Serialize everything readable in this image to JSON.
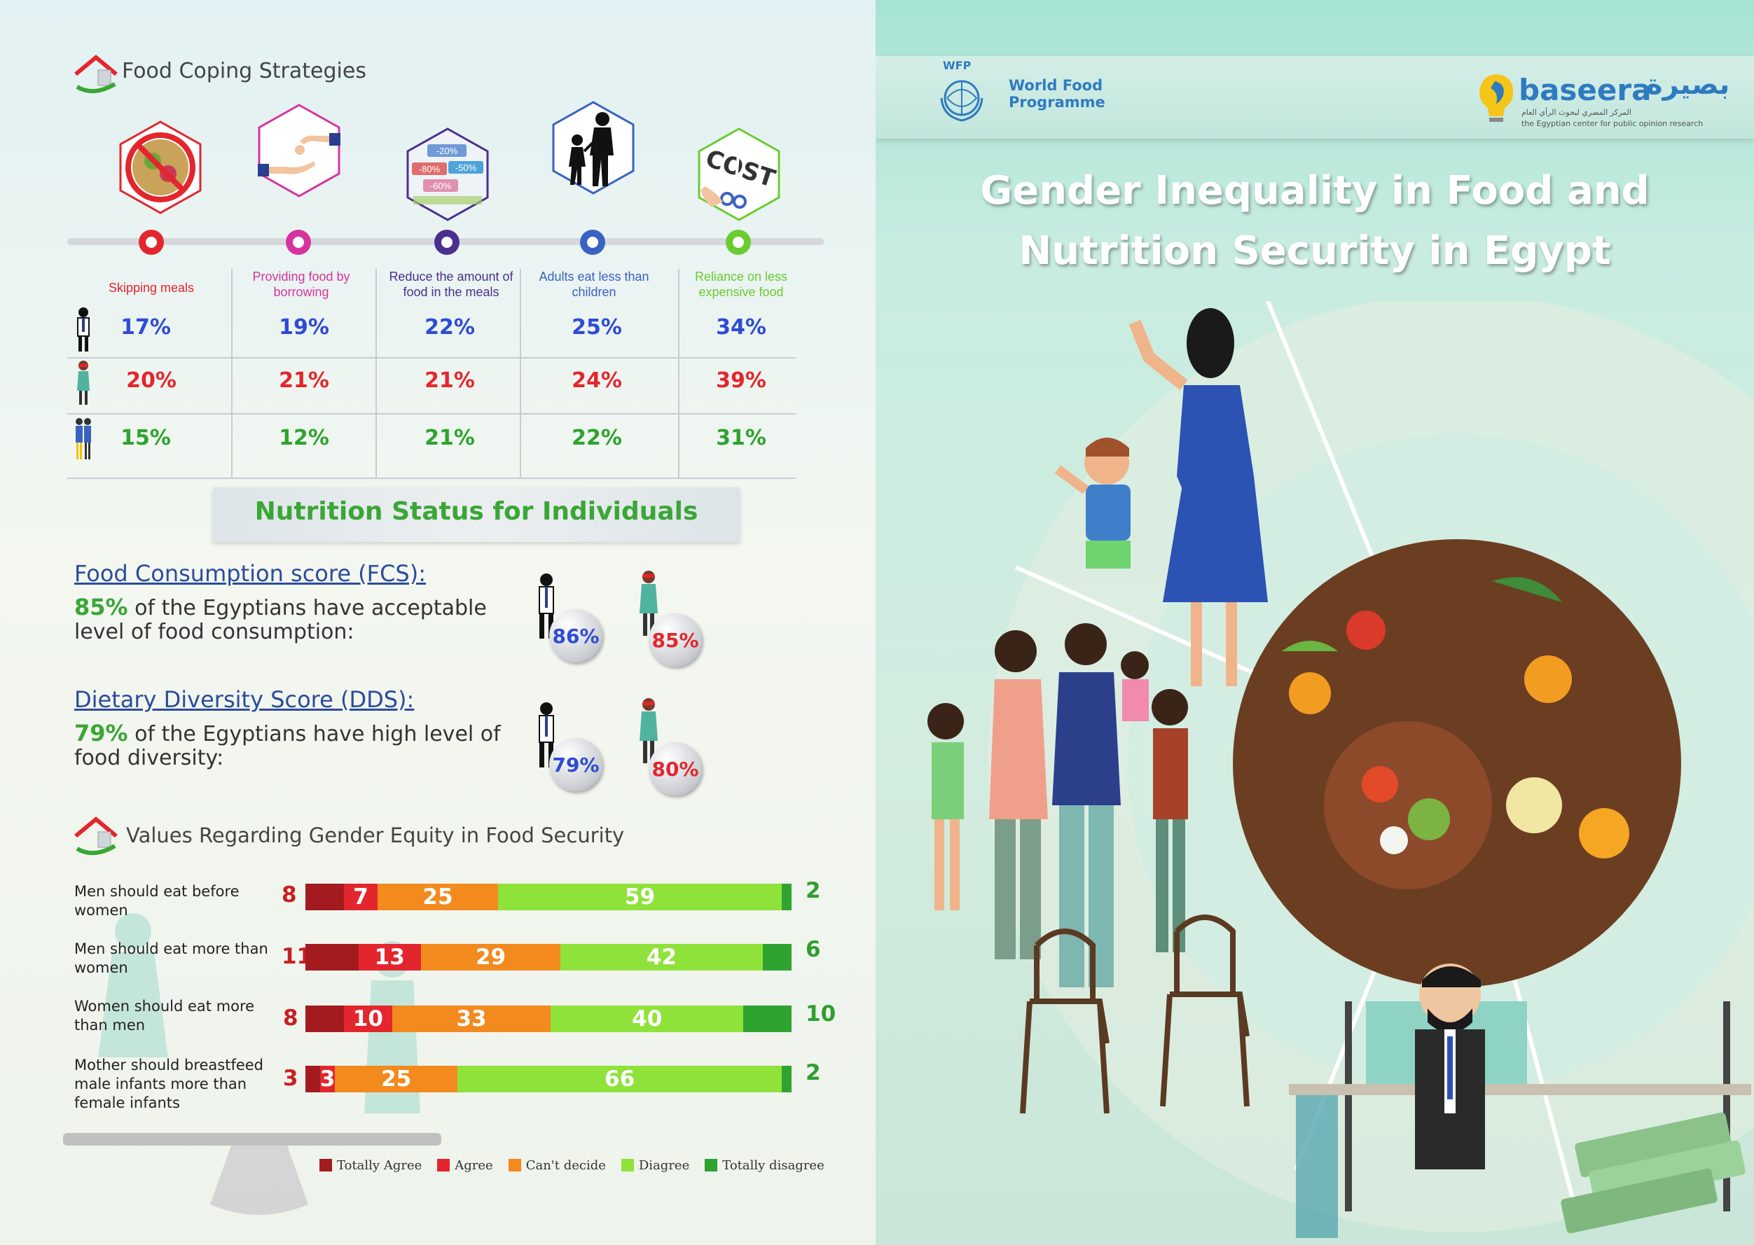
{
  "left": {
    "food_coping": {
      "title": "Food Coping Strategies",
      "strategies": [
        {
          "label": "Skipping meals",
          "color": "#e3262d"
        },
        {
          "label": "Providing food by borrowing",
          "color": "#d6339f"
        },
        {
          "label": "Reduce the amount of food in the meals",
          "color": "#4a2f8f"
        },
        {
          "label": "Adults eat less than children",
          "color": "#3a62c2"
        },
        {
          "label": "Reliance on less expensive food",
          "color": "#6acc2f"
        }
      ],
      "discount_tags": [
        "-20%",
        "-80%",
        "-50%",
        "-60%"
      ],
      "cost_word": "COST",
      "rows": [
        {
          "group": "men",
          "color": "#2f4bd6",
          "values": [
            "17%",
            "19%",
            "22%",
            "25%",
            "34%"
          ]
        },
        {
          "group": "women",
          "color": "#e3262d",
          "values": [
            "20%",
            "21%",
            "21%",
            "24%",
            "39%"
          ]
        },
        {
          "group": "total",
          "color": "#2fa32f",
          "values": [
            "15%",
            "12%",
            "21%",
            "22%",
            "31%"
          ]
        }
      ]
    },
    "nutrition": {
      "title": "Nutrition Status for Individuals",
      "fcs": {
        "heading": "Food Consumption score (FCS):",
        "pct": "85%",
        "text": " of the Egyptians have acceptable level of food consumption:",
        "men": "86%",
        "women": "85%"
      },
      "dds": {
        "heading": "Dietary Diversity Score (DDS):",
        "pct": "79%",
        "text": " of the Egyptians have high level of food diversity:",
        "men": "79%",
        "women": "80%"
      }
    },
    "values": {
      "title": "Values Regarding Gender Equity in Food Security",
      "colors": {
        "totally_agree": "#a31b1f",
        "agree": "#e3262d",
        "cant_decide": "#f28a1e",
        "disagree": "#8fe23a",
        "totally_disagree": "#2fa32f"
      },
      "items": [
        {
          "label": "Men should eat before women",
          "totally_agree": 8,
          "agree": 7,
          "cant_decide": 25,
          "disagree": 59,
          "totally_disagree": 2,
          "totally_agree_label": "8",
          "agree_label": "7",
          "cant_decide_label": "25",
          "disagree_label": "59",
          "totally_disagree_label": "2"
        },
        {
          "label": "Men should eat more than women",
          "totally_agree": 11,
          "agree": 13,
          "cant_decide": 29,
          "disagree": 42,
          "totally_disagree": 6,
          "totally_agree_label": "11",
          "agree_label": "13",
          "cant_decide_label": "29",
          "disagree_label": "42",
          "totally_disagree_label": "6"
        },
        {
          "label": "Women should eat more than men",
          "totally_agree": 8,
          "agree": 10,
          "cant_decide": 33,
          "disagree": 40,
          "totally_disagree": 10,
          "totally_agree_label": "8",
          "agree_label": "10",
          "cant_decide_label": "33",
          "disagree_label": "40",
          "totally_disagree_label": "10"
        },
        {
          "label": "Mother should breastfeed male infants more than female infants",
          "totally_agree": 3,
          "agree": 3,
          "cant_decide": 25,
          "disagree": 66,
          "totally_disagree": 2,
          "totally_agree_label": "3",
          "agree_label": "3",
          "cant_decide_label": "25",
          "disagree_label": "66",
          "totally_disagree_label": "2"
        }
      ],
      "legend": [
        "Totally Agree",
        "Agree",
        "Can't decide",
        "Diagree",
        "Totally disagree"
      ]
    }
  },
  "right": {
    "wfp": {
      "acronym": "WFP",
      "line1": "World Food",
      "line2": "Programme"
    },
    "baseera": {
      "latin": "baseera",
      "arabic": "بصيرة",
      "arabic_sub": "المركز المصري لبحوث الرأي العام",
      "english_sub": "the Egyptian center for public opinion research"
    },
    "title_line1": "Gender Inequality in Food and",
    "title_line2": "Nutrition Security in Egypt"
  }
}
